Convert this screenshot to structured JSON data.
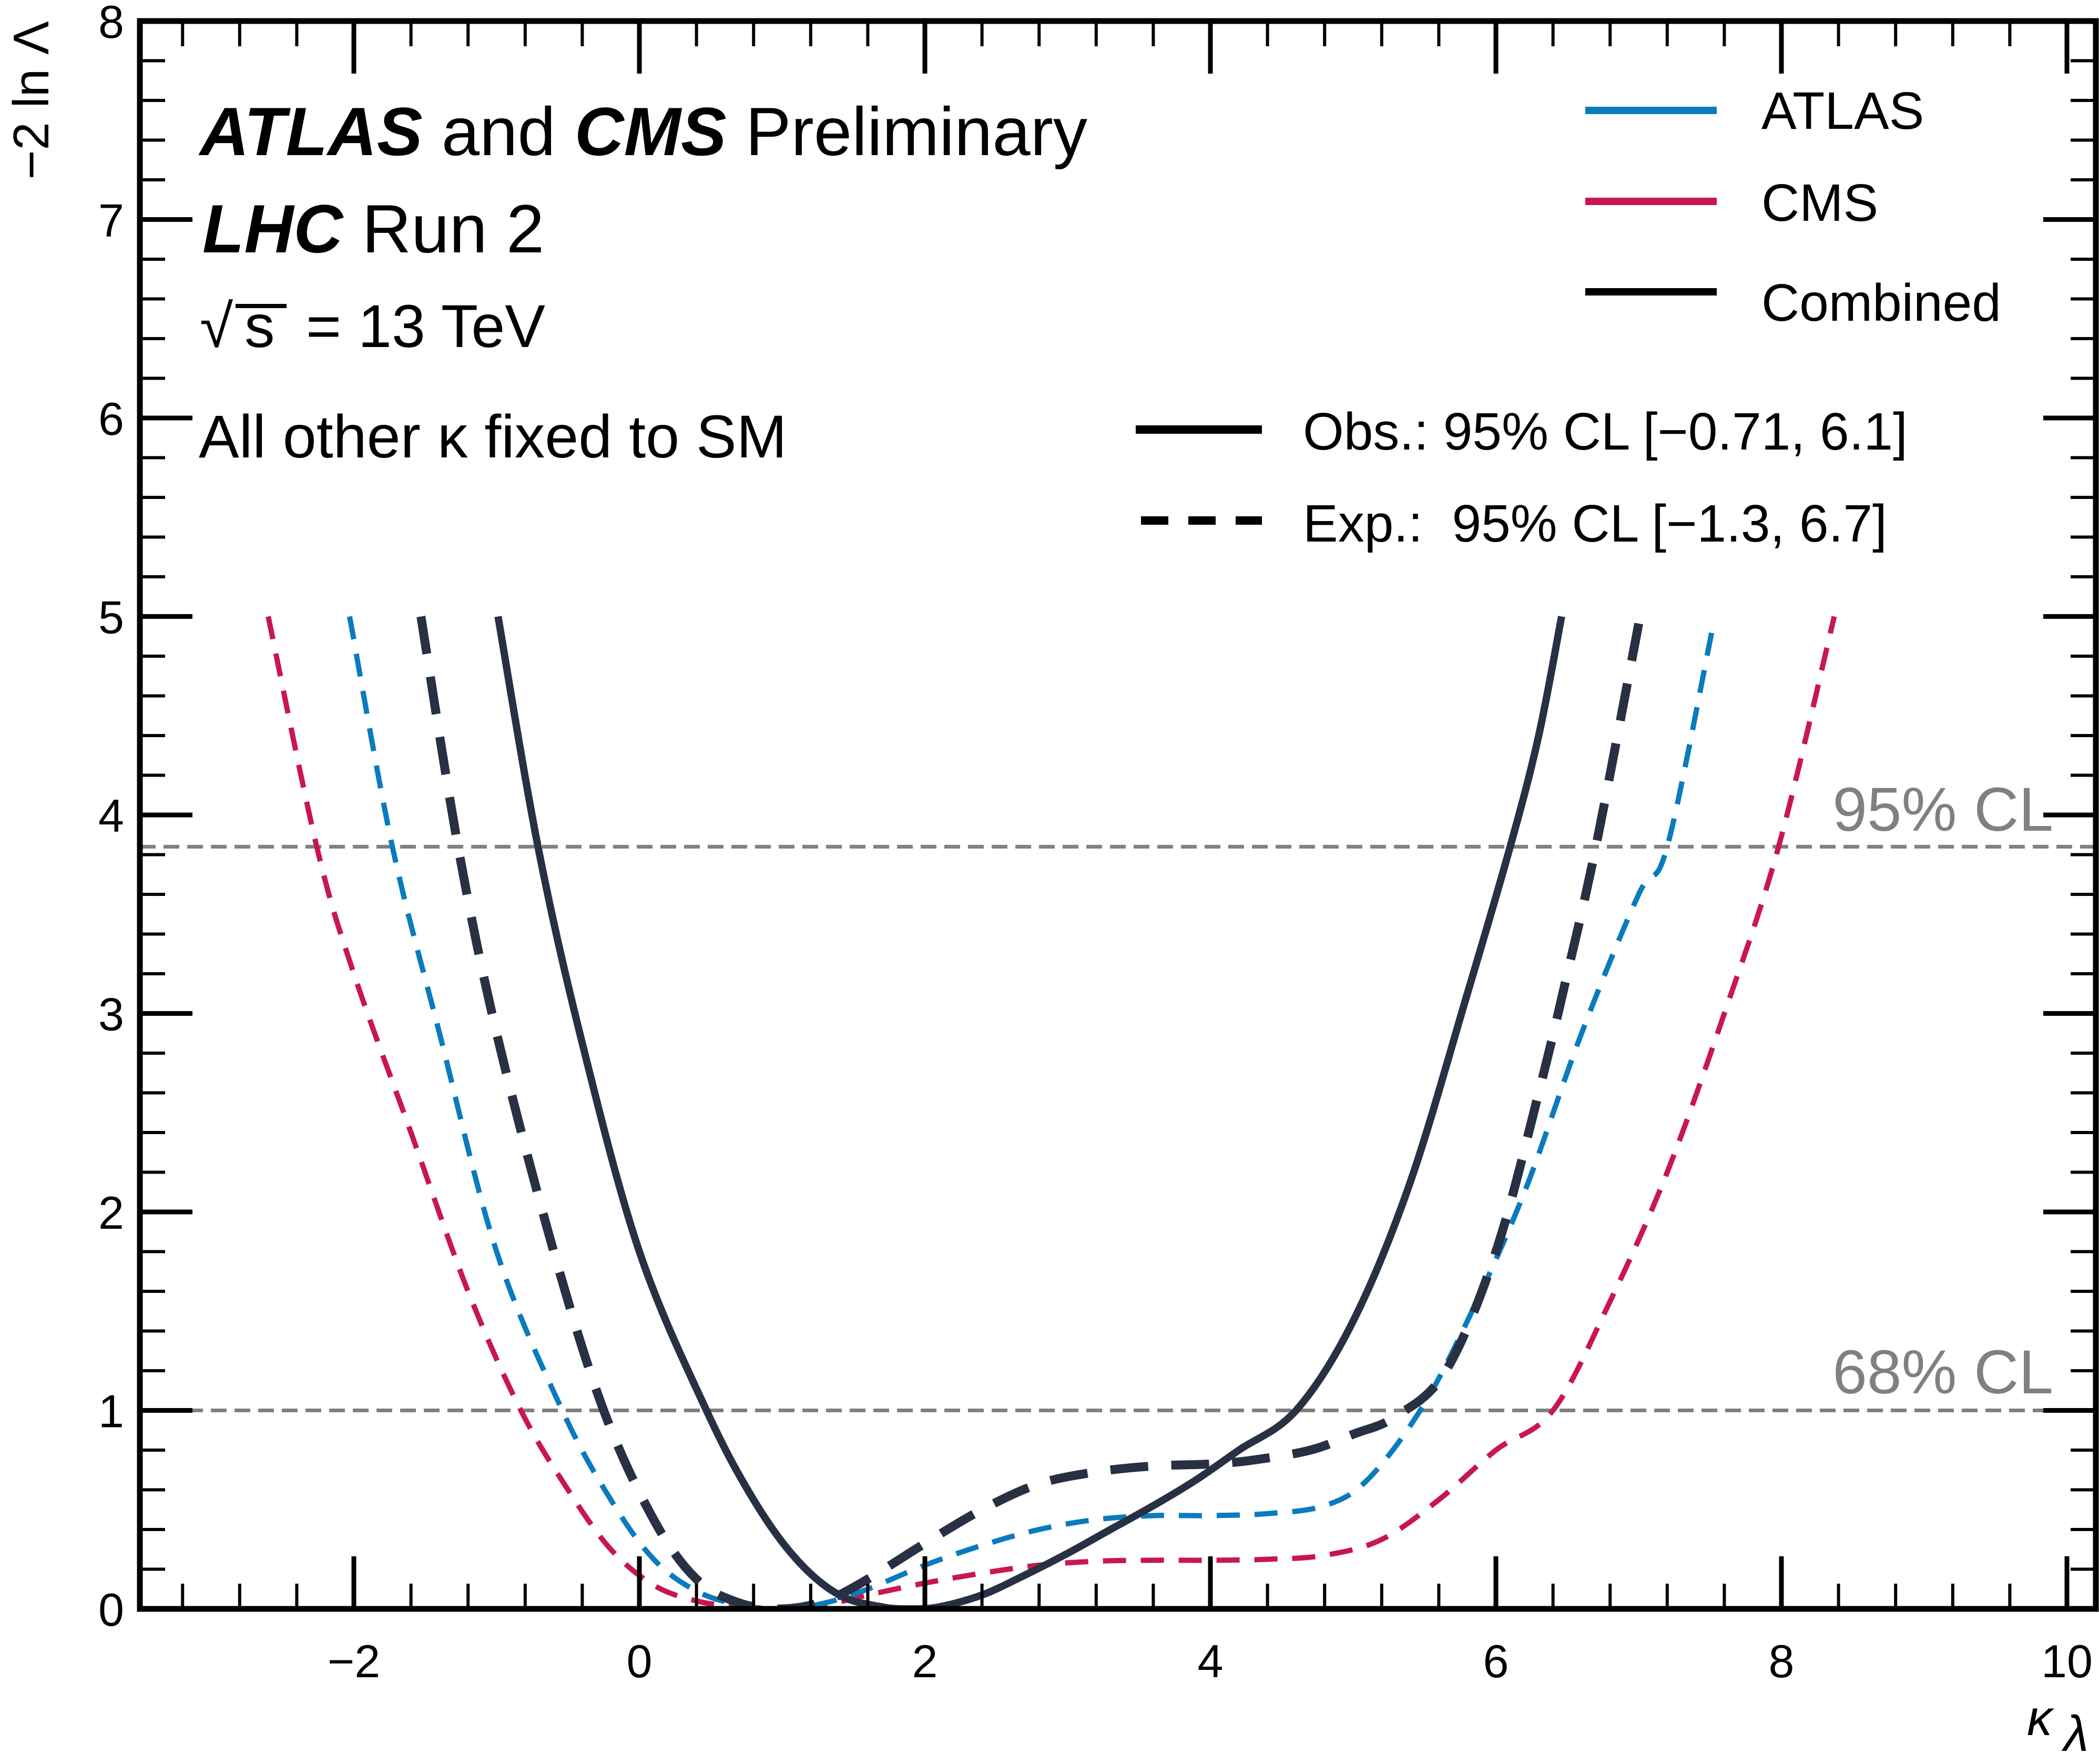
{
  "chart_data": {
    "type": "line",
    "title": "ATLAS and CMS Preliminary",
    "annotations": {
      "experiment_line": {
        "bold1": "ATLAS",
        "mid": " and ",
        "bold2": "CMS",
        "rest": " Preliminary"
      },
      "run_line": {
        "bold": "LHC",
        "rest": " Run 2"
      },
      "energy_line": {
        "sqrt": "√",
        "s": "s",
        "rest": " = 13 TeV"
      },
      "condition_line": "All other κ fixed to SM"
    },
    "xlabel": "κ",
    "xlabel_sub": "λ",
    "ylabel": "−2 ln Λ",
    "xlim": [
      -3.5,
      10.2
    ],
    "ylim": [
      0,
      8
    ],
    "x_ticks": [
      -2,
      0,
      2,
      4,
      6,
      8,
      10
    ],
    "x_tick_labels": [
      "−2",
      "0",
      "2",
      "4",
      "6",
      "8",
      "10"
    ],
    "x_minor_step": 0.4,
    "y_ticks": [
      0,
      1,
      2,
      3,
      4,
      5,
      6,
      7,
      8
    ],
    "y_tick_labels": [
      "0",
      "1",
      "2",
      "3",
      "4",
      "5",
      "6",
      "7",
      "8"
    ],
    "y_minor_step": 0.2,
    "grid": false,
    "reference_lines": [
      {
        "name": "95% CL",
        "y": 3.84,
        "label": "95% CL",
        "color": "#808080"
      },
      {
        "name": "68% CL",
        "y": 1.0,
        "label": "68% CL",
        "color": "#808080"
      }
    ],
    "legend": {
      "placement": "top-right",
      "experiments": [
        {
          "label": "ATLAS",
          "color": "#0a7bbd"
        },
        {
          "label": "CMS",
          "color": "#c8174f"
        },
        {
          "label": "Combined",
          "color": "#000000"
        }
      ],
      "styles": [
        {
          "label": "Obs.: 95% CL [−0.71, 6.1]",
          "style": "solid"
        },
        {
          "label": "Exp.:  95% CL [−1.3, 6.7]",
          "style": "dashed"
        }
      ]
    },
    "series": [
      {
        "name": "CMS expected",
        "color": "#c8174f",
        "style": "dashed",
        "x": [
          -2.6,
          -2.26,
          -2.0,
          -1.6,
          -1.2,
          -0.83,
          -0.5,
          -0.2,
          0.1,
          0.4,
          0.7,
          1.0,
          1.3,
          1.6,
          2.0,
          2.4,
          2.8,
          3.2,
          3.6,
          4.0,
          4.4,
          4.8,
          5.2,
          5.6,
          6.0,
          6.4,
          6.8,
          7.2,
          7.6,
          7.98,
          8.37
        ],
        "y": [
          5.0,
          3.84,
          3.2,
          2.4,
          1.6,
          1.0,
          0.6,
          0.3,
          0.12,
          0.04,
          0.01,
          0.0,
          0.02,
          0.07,
          0.13,
          0.18,
          0.22,
          0.24,
          0.245,
          0.245,
          0.25,
          0.27,
          0.35,
          0.55,
          0.8,
          1.0,
          1.55,
          2.2,
          3.0,
          3.84,
          5.0
        ]
      },
      {
        "name": "ATLAS expected",
        "color": "#0a7bbd",
        "style": "dashed",
        "x": [
          -2.03,
          -1.73,
          -1.4,
          -1.0,
          -0.54,
          -0.2,
          0.1,
          0.4,
          0.7,
          1.0,
          1.3,
          1.6,
          2.0,
          2.4,
          2.8,
          3.2,
          3.6,
          4.0,
          4.4,
          4.8,
          5.1,
          5.47,
          5.8,
          6.2,
          6.6,
          7.0,
          7.2,
          7.52
        ],
        "y": [
          5.0,
          3.84,
          2.9,
          1.8,
          1.0,
          0.55,
          0.25,
          0.09,
          0.02,
          0.0,
          0.03,
          0.1,
          0.22,
          0.32,
          0.4,
          0.45,
          0.47,
          0.47,
          0.48,
          0.52,
          0.65,
          1.0,
          1.45,
          2.1,
          2.9,
          3.6,
          3.84,
          4.95
        ]
      },
      {
        "name": "Combined expected",
        "color": "#283044",
        "style": "dashed",
        "x": [
          -1.53,
          -1.27,
          -1.0,
          -0.6,
          -0.25,
          0.1,
          0.4,
          0.7,
          1.0,
          1.3,
          1.6,
          2.0,
          2.4,
          2.8,
          3.2,
          3.6,
          4.0,
          4.3,
          4.7,
          5.0,
          5.3,
          5.65,
          6.0,
          6.3,
          6.5,
          6.7,
          7.01
        ],
        "y": [
          5.0,
          3.84,
          2.9,
          1.8,
          1.0,
          0.45,
          0.15,
          0.03,
          0.0,
          0.04,
          0.15,
          0.33,
          0.5,
          0.63,
          0.69,
          0.72,
          0.73,
          0.75,
          0.8,
          0.88,
          0.97,
          1.2,
          1.8,
          2.6,
          3.2,
          3.84,
          5.0
        ]
      },
      {
        "name": "Combined observed",
        "color": "#283044",
        "style": "solid",
        "x": [
          -0.99,
          -0.71,
          -0.4,
          0.0,
          0.47,
          0.8,
          1.1,
          1.4,
          1.7,
          1.9,
          2.1,
          2.4,
          2.7,
          3.0,
          3.3,
          3.6,
          3.9,
          4.2,
          4.6,
          5.0,
          5.4,
          5.8,
          6.1,
          6.3,
          6.46
        ],
        "y": [
          5.0,
          3.84,
          2.85,
          1.8,
          1.0,
          0.55,
          0.25,
          0.07,
          0.01,
          0.0,
          0.01,
          0.07,
          0.17,
          0.28,
          0.4,
          0.52,
          0.65,
          0.8,
          1.0,
          1.45,
          2.15,
          3.1,
          3.84,
          4.4,
          5.0
        ]
      }
    ]
  }
}
